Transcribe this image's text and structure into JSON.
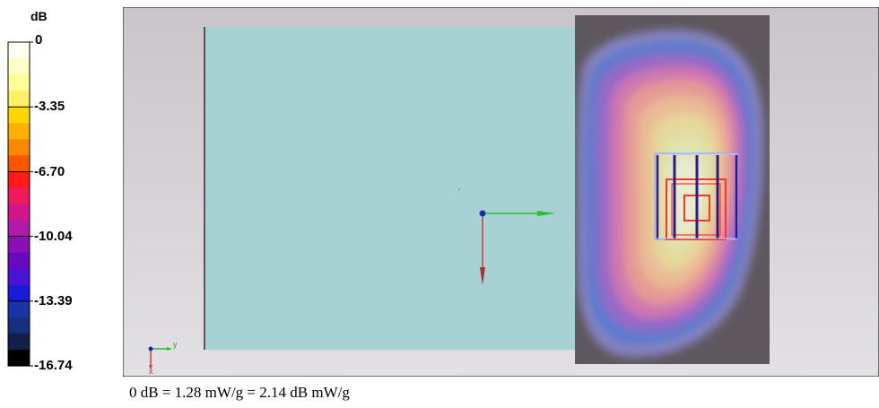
{
  "chart_data": {
    "type": "heatmap",
    "colorbar": {
      "unit": "dB",
      "range": [
        -16.74,
        0
      ],
      "tick_labels": [
        "0",
        "-3.35",
        "-6.70",
        "-10.04",
        "-13.39",
        "-16.74"
      ],
      "tick_values": [
        0,
        -3.35,
        -6.7,
        -10.04,
        -13.39,
        -16.74
      ],
      "colors": [
        "#fffff0",
        "#ffffc8",
        "#ffff99",
        "#ffee66",
        "#ffd700",
        "#ffb000",
        "#ff8800",
        "#ff5500",
        "#ff1a1a",
        "#ee1a5a",
        "#d4148a",
        "#b01aa8",
        "#8a10b4",
        "#6a0ac0",
        "#4a14d6",
        "#1a1ad8",
        "#1a34a8",
        "#163080",
        "#10204a",
        "#000000"
      ]
    },
    "reference": "0 dB = 1.28 mW/g = 2.14 dB mW/g",
    "axes_triad": {
      "y_label": "y",
      "x_label": "x"
    }
  }
}
